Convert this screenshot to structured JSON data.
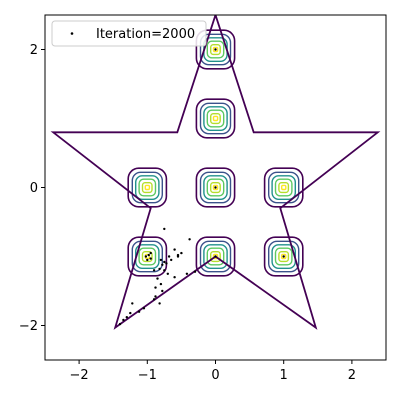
{
  "chart_data": {
    "type": "scatter",
    "title": "",
    "xlabel": "",
    "ylabel": "",
    "xlim": [
      -2.5,
      2.5
    ],
    "ylim": [
      -2.5,
      2.5
    ],
    "xticks": [
      -2,
      -1,
      0,
      1,
      2
    ],
    "yticks": [
      -2,
      0,
      2
    ],
    "xtick_labels": [
      "−2",
      "−1",
      "0",
      "1",
      "2"
    ],
    "ytick_labels": [
      "−2",
      "0",
      "2"
    ],
    "grid": false,
    "legend": {
      "position": "top-left",
      "entries": [
        "Iteration=2000"
      ]
    },
    "colors": {
      "star_outline": "#440154",
      "contour_inner": "#fde725",
      "contour_mid": "#21918c",
      "points": "#000000"
    },
    "star_boundary": [
      [
        0.0,
        2.5
      ],
      [
        0.56,
        0.8
      ],
      [
        2.38,
        0.8
      ],
      [
        0.95,
        -0.3
      ],
      [
        1.47,
        -2.03
      ],
      [
        0.0,
        -1.0
      ],
      [
        -1.47,
        -2.03
      ],
      [
        -0.95,
        -0.3
      ],
      [
        -2.38,
        0.8
      ],
      [
        -0.56,
        0.8
      ]
    ],
    "density_modes": [
      [
        0.0,
        2.0
      ],
      [
        0.0,
        1.0
      ],
      [
        -1.0,
        0.0
      ],
      [
        0.0,
        0.0
      ],
      [
        1.0,
        0.0
      ],
      [
        -1.0,
        -1.0
      ],
      [
        0.0,
        -1.0
      ],
      [
        1.0,
        -1.0
      ]
    ],
    "series": [
      {
        "name": "Iteration=2000",
        "points": [
          [
            0.0,
            2.0
          ],
          [
            0.0,
            0.0
          ],
          [
            -0.98,
            -0.98
          ],
          [
            -1.0,
            -1.05
          ],
          [
            -0.95,
            -1.03
          ],
          [
            1.0,
            -1.0
          ],
          [
            0.0,
            -1.0
          ],
          [
            -0.8,
            -1.05
          ],
          [
            -0.75,
            -1.08
          ],
          [
            -0.78,
            -1.12
          ],
          [
            -0.72,
            -1.1
          ],
          [
            -0.82,
            -1.18
          ],
          [
            -0.7,
            -1.25
          ],
          [
            -0.75,
            -1.2
          ],
          [
            -0.68,
            -1.0
          ],
          [
            -0.65,
            -1.05
          ],
          [
            -0.9,
            -1.2
          ],
          [
            -0.85,
            -1.32
          ],
          [
            -0.8,
            -1.4
          ],
          [
            -0.78,
            -1.5
          ],
          [
            -0.88,
            -1.58
          ],
          [
            -0.9,
            -1.62
          ],
          [
            -0.82,
            -1.68
          ],
          [
            -0.75,
            -0.6
          ],
          [
            -0.55,
            -1.0
          ],
          [
            -0.55,
            -0.98
          ],
          [
            -0.38,
            -0.75
          ],
          [
            -0.42,
            -1.25
          ],
          [
            -0.3,
            -1.22
          ],
          [
            -1.05,
            -1.75
          ],
          [
            -1.12,
            -1.8
          ],
          [
            -1.25,
            -1.82
          ],
          [
            -1.3,
            -1.88
          ],
          [
            -1.22,
            -1.68
          ],
          [
            -1.35,
            -1.92
          ],
          [
            -1.4,
            -1.98
          ],
          [
            -1.02,
            -1.0
          ],
          [
            -0.95,
            -0.95
          ],
          [
            -0.6,
            -0.9
          ],
          [
            -0.5,
            -0.95
          ],
          [
            -0.6,
            -1.3
          ],
          [
            -0.88,
            -1.45
          ]
        ]
      }
    ]
  }
}
